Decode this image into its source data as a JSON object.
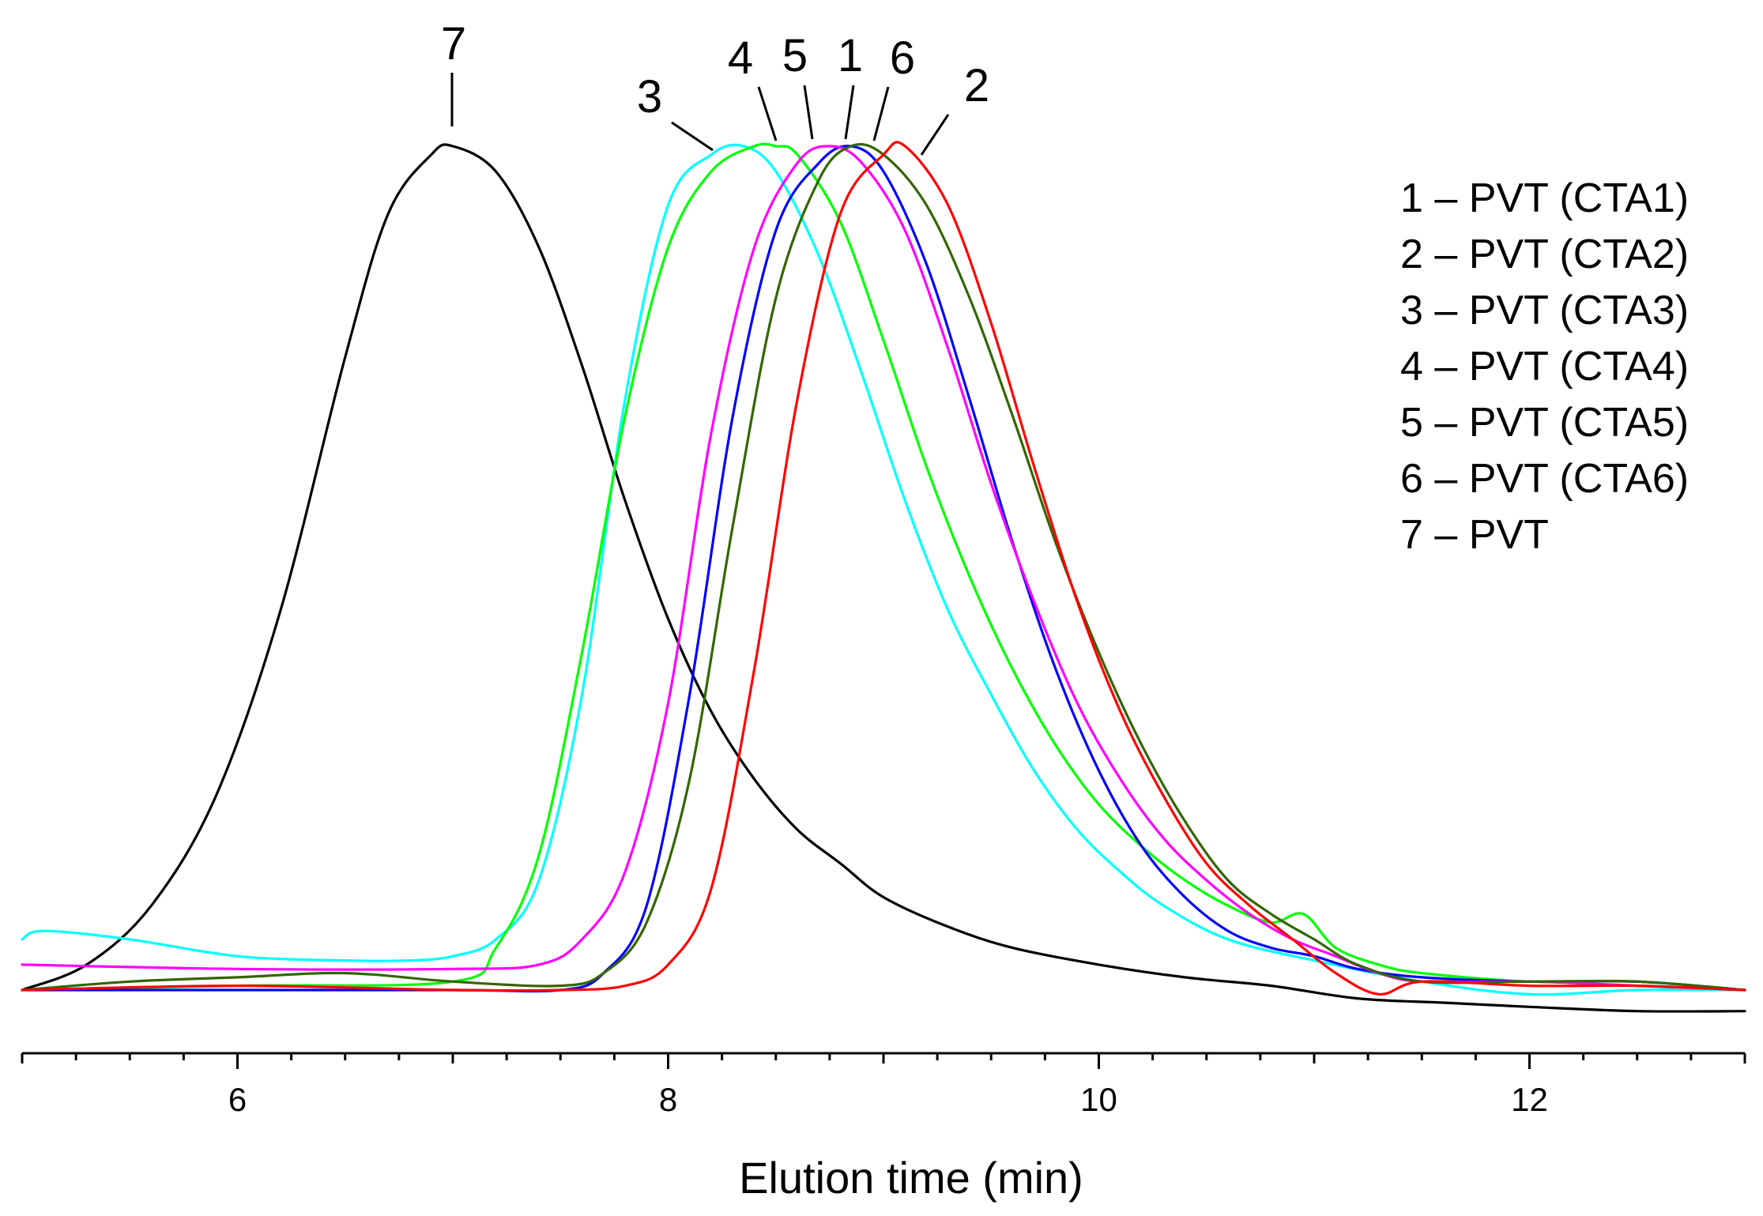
{
  "chart_data": {
    "type": "line",
    "title": "",
    "xlabel": "Elution time (min)",
    "ylabel": "",
    "xlim": [
      5.0,
      13.0
    ],
    "ylim": [
      -0.03,
      1.0
    ],
    "xticks": [
      6,
      8,
      10,
      12
    ],
    "xtick_labels": [
      "6",
      "8",
      "10",
      "12"
    ],
    "legend_position": "top-right",
    "series": [
      {
        "id": "1",
        "name": "PVT (CTA1)",
        "legend": "1 – PVT (CTA1)",
        "color": "#0000ff",
        "x": [
          5.0,
          6.0,
          7.0,
          7.5,
          7.7,
          7.9,
          8.1,
          8.3,
          8.5,
          8.7,
          8.85,
          9.0,
          9.2,
          9.4,
          9.6,
          9.8,
          10.0,
          10.2,
          10.4,
          10.6,
          10.8,
          11.0,
          11.2,
          11.5,
          12.0,
          12.5,
          13.0
        ],
        "y": [
          0.0,
          0.0,
          0.0,
          0.0,
          0.02,
          0.1,
          0.35,
          0.68,
          0.9,
          0.98,
          1.0,
          0.97,
          0.86,
          0.7,
          0.53,
          0.38,
          0.26,
          0.17,
          0.11,
          0.07,
          0.05,
          0.04,
          0.025,
          0.015,
          0.01,
          0.01,
          0.0
        ]
      },
      {
        "id": "2",
        "name": "PVT (CTA2)",
        "legend": "2 – PVT (CTA2)",
        "color": "#ff0000",
        "x": [
          5.0,
          6.0,
          7.0,
          7.5,
          7.8,
          8.0,
          8.2,
          8.4,
          8.6,
          8.8,
          9.0,
          9.1,
          9.3,
          9.5,
          9.7,
          9.9,
          10.1,
          10.3,
          10.5,
          10.7,
          10.9,
          11.1,
          11.3,
          11.5,
          12.0,
          12.5,
          13.0
        ],
        "y": [
          0.0,
          0.005,
          0.0,
          0.0,
          0.005,
          0.03,
          0.12,
          0.38,
          0.7,
          0.92,
          0.99,
          1.0,
          0.93,
          0.79,
          0.62,
          0.46,
          0.33,
          0.23,
          0.15,
          0.1,
          0.06,
          0.02,
          -0.005,
          0.01,
          0.005,
          0.005,
          0.0
        ]
      },
      {
        "id": "3",
        "name": "PVT (CTA3)",
        "legend": "3 – PVT (CTA3)",
        "color": "#00ffff",
        "x": [
          5.0,
          5.1,
          5.5,
          6.0,
          6.5,
          6.8,
          7.0,
          7.2,
          7.4,
          7.6,
          7.8,
          8.0,
          8.2,
          8.35,
          8.5,
          8.7,
          8.9,
          9.1,
          9.3,
          9.5,
          9.7,
          9.9,
          10.1,
          10.3,
          10.6,
          11.0,
          11.5,
          12.0,
          12.5,
          13.0
        ],
        "y": [
          0.06,
          0.07,
          0.06,
          0.04,
          0.035,
          0.035,
          0.04,
          0.06,
          0.13,
          0.35,
          0.7,
          0.93,
          0.99,
          1.0,
          0.97,
          0.87,
          0.73,
          0.58,
          0.45,
          0.35,
          0.26,
          0.19,
          0.14,
          0.1,
          0.06,
          0.035,
          0.01,
          -0.005,
          0.0,
          0.0
        ]
      },
      {
        "id": "4",
        "name": "PVT (CTA4)",
        "legend": "4 – PVT (CTA4)",
        "color": "#00ff00",
        "x": [
          5.0,
          6.0,
          7.0,
          7.2,
          7.4,
          7.6,
          7.8,
          8.0,
          8.2,
          8.4,
          8.5,
          8.6,
          8.8,
          9.0,
          9.2,
          9.4,
          9.6,
          9.8,
          10.0,
          10.2,
          10.4,
          10.6,
          10.8,
          10.95,
          11.1,
          11.3,
          11.5,
          12.0,
          12.5,
          13.0
        ],
        "y": [
          0.0,
          0.005,
          0.01,
          0.05,
          0.16,
          0.4,
          0.68,
          0.88,
          0.97,
          1.0,
          1.0,
          0.99,
          0.91,
          0.77,
          0.62,
          0.49,
          0.38,
          0.29,
          0.22,
          0.17,
          0.13,
          0.1,
          0.08,
          0.09,
          0.05,
          0.03,
          0.02,
          0.01,
          0.01,
          0.0
        ]
      },
      {
        "id": "5",
        "name": "PVT (CTA5)",
        "legend": "5 – PVT (CTA5)",
        "color": "#ff00ff",
        "x": [
          5.0,
          6.0,
          7.0,
          7.4,
          7.6,
          7.8,
          8.0,
          8.2,
          8.4,
          8.6,
          8.75,
          8.9,
          9.1,
          9.3,
          9.5,
          9.7,
          9.9,
          10.1,
          10.3,
          10.5,
          10.7,
          10.9,
          11.1,
          11.3,
          11.5,
          12.0,
          12.5,
          13.0
        ],
        "y": [
          0.03,
          0.025,
          0.025,
          0.03,
          0.06,
          0.14,
          0.34,
          0.66,
          0.88,
          0.98,
          1.0,
          0.98,
          0.9,
          0.76,
          0.6,
          0.46,
          0.34,
          0.25,
          0.18,
          0.13,
          0.09,
          0.06,
          0.04,
          0.02,
          0.01,
          0.01,
          0.005,
          0.0
        ]
      },
      {
        "id": "6",
        "name": "PVT (CTA6)",
        "legend": "6 – PVT (CTA6)",
        "color": "#336600",
        "x": [
          5.0,
          5.5,
          6.0,
          6.5,
          7.0,
          7.5,
          7.7,
          7.9,
          8.1,
          8.3,
          8.5,
          8.7,
          8.85,
          9.0,
          9.2,
          9.4,
          9.6,
          9.8,
          10.0,
          10.2,
          10.4,
          10.6,
          10.8,
          11.0,
          11.2,
          11.5,
          12.0,
          12.5,
          13.0
        ],
        "y": [
          0.0,
          0.01,
          0.015,
          0.02,
          0.01,
          0.005,
          0.02,
          0.08,
          0.25,
          0.55,
          0.82,
          0.96,
          1.0,
          0.99,
          0.93,
          0.82,
          0.68,
          0.53,
          0.4,
          0.29,
          0.2,
          0.13,
          0.09,
          0.06,
          0.03,
          0.01,
          0.01,
          0.01,
          0.0
        ]
      },
      {
        "id": "7",
        "name": "PVT",
        "legend": "7 – PVT",
        "color": "#000000",
        "x": [
          5.0,
          5.3,
          5.6,
          5.9,
          6.2,
          6.5,
          6.7,
          6.9,
          7.0,
          7.2,
          7.4,
          7.6,
          7.8,
          8.0,
          8.2,
          8.4,
          8.6,
          8.8,
          9.0,
          9.3,
          9.6,
          10.0,
          10.4,
          10.8,
          11.2,
          11.6,
          12.0,
          12.5,
          13.0
        ],
        "y": [
          0.0,
          0.03,
          0.1,
          0.23,
          0.45,
          0.75,
          0.92,
          0.99,
          1.0,
          0.97,
          0.88,
          0.74,
          0.58,
          0.44,
          0.33,
          0.25,
          0.19,
          0.15,
          0.11,
          0.075,
          0.05,
          0.03,
          0.015,
          0.005,
          -0.01,
          -0.015,
          -0.02,
          -0.025,
          -0.025
        ]
      }
    ],
    "peak_labels": [
      {
        "text": "7",
        "series": "7",
        "peak_x": 6.98
      },
      {
        "text": "3",
        "series": "3",
        "peak_x": 8.35
      },
      {
        "text": "4",
        "series": "4",
        "peak_x": 8.5
      },
      {
        "text": "5",
        "series": "5",
        "peak_x": 8.75
      },
      {
        "text": "1",
        "series": "1",
        "peak_x": 8.85
      },
      {
        "text": "6",
        "series": "6",
        "peak_x": 8.95
      },
      {
        "text": "2",
        "series": "2",
        "peak_x": 9.1
      }
    ]
  }
}
